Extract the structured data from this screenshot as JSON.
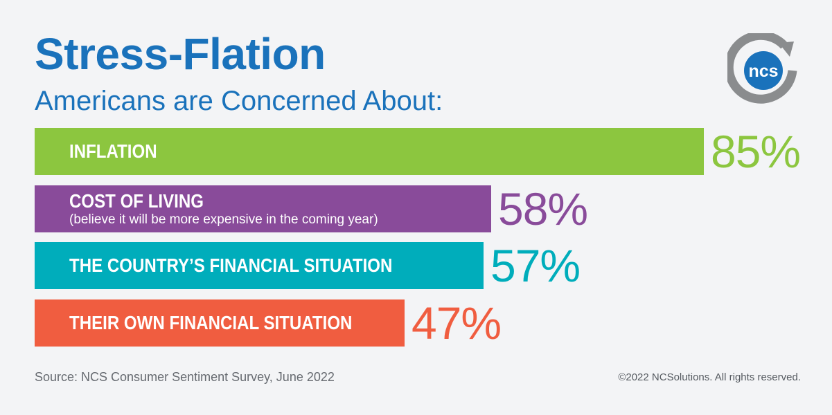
{
  "chart_data": {
    "type": "bar",
    "orientation": "horizontal",
    "title": "Stress-Flation",
    "subtitle": "Americans are Concerned About:",
    "unit": "%",
    "xlim": [
      0,
      100
    ],
    "grid": false,
    "legend": "none",
    "categories": [
      "INFLATION",
      "COST OF LIVING",
      "THE COUNTRY’S FINANCIAL SITUATION",
      "THEIR OWN FINANCIAL SITUATION"
    ],
    "values": [
      85,
      58,
      57,
      47
    ],
    "value_labels": [
      "85%",
      "58%",
      "57%",
      "47%"
    ],
    "notes": [
      "",
      "(believe it will be more expensive in the coming year)",
      "",
      ""
    ],
    "colors": [
      "#8cc63f",
      "#894b9a",
      "#00adbb",
      "#f05d40"
    ]
  },
  "logo": {
    "text": "ncs",
    "ring_color": "#8a8c8e",
    "badge_color": "#1a72bb"
  },
  "footer": {
    "source": "Source: NCS Consumer Sentiment Survey, June 2022",
    "copyright": "©2022 NCSolutions. All rights reserved."
  }
}
